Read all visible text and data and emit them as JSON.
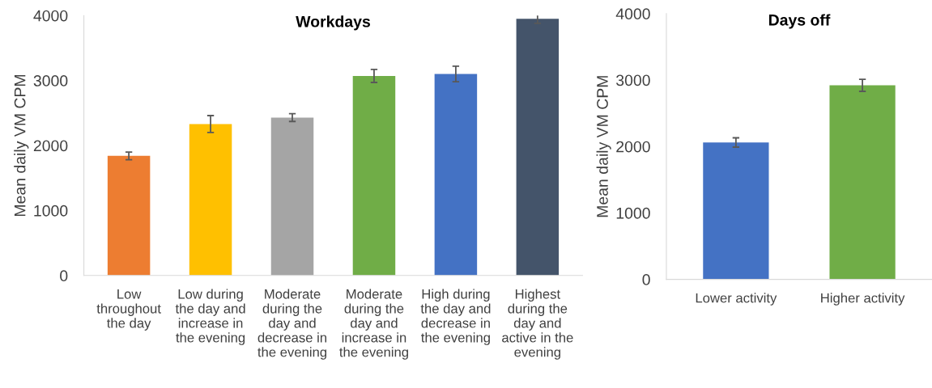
{
  "chart_data": [
    {
      "type": "bar",
      "title": "Workdays",
      "ylabel": "Mean daily VM CPM",
      "categories": [
        "Low\nthroughout\nthe day",
        "Low during\nthe day and\nincrease in\nthe evening",
        "Moderate\nduring the\nday and\ndecrease in\nthe evening",
        "Moderate\nduring the\nday and\nincrease in\nthe evening",
        "High during\nthe day and\ndecrease in\nthe evening",
        "Highest\nduring the\nday and\nactive in the\nevening"
      ],
      "values": [
        1840,
        2330,
        2430,
        3070,
        3100,
        3950
      ],
      "errors": [
        60,
        130,
        60,
        100,
        120,
        70
      ],
      "colors": [
        "#ed7d31",
        "#ffc000",
        "#a5a5a5",
        "#70ad47",
        "#4472c4",
        "#44546a"
      ],
      "ylim": [
        0,
        4000
      ],
      "yticks": [
        0,
        1000,
        2000,
        3000,
        4000
      ],
      "grid": false,
      "legend": false
    },
    {
      "type": "bar",
      "title": "Days off",
      "ylabel": "Mean daily VM CPM",
      "categories": [
        "Lower activity",
        "Higher activity"
      ],
      "values": [
        2060,
        2920
      ],
      "errors": [
        70,
        90
      ],
      "colors": [
        "#4472c4",
        "#70ad47"
      ],
      "ylim": [
        0,
        4000
      ],
      "yticks": [
        0,
        1000,
        2000,
        3000,
        4000
      ],
      "grid": false,
      "legend": false
    }
  ]
}
